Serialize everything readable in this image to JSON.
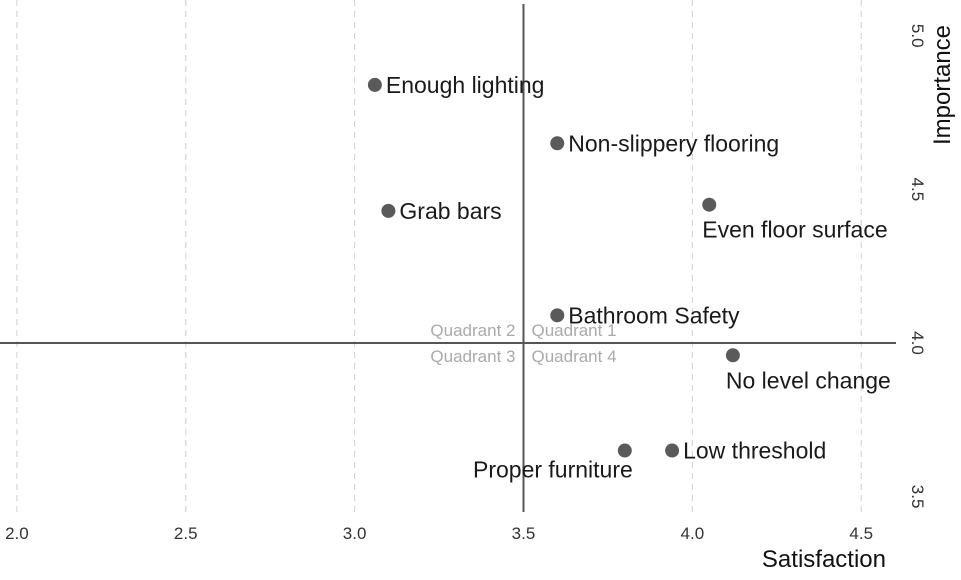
{
  "chart_data": {
    "type": "scatter",
    "title": "",
    "xlabel": "Satisfaction",
    "ylabel": "Importance",
    "xlim": [
      1.95,
      4.6
    ],
    "ylim": [
      3.45,
      5.1
    ],
    "x_ticks": [
      2.0,
      2.5,
      3.0,
      3.5,
      4.0,
      4.5
    ],
    "x_tick_labels": [
      "2.0",
      "2.5",
      "3.0",
      "3.5",
      "4.0",
      "4.5"
    ],
    "y_ticks": [
      3.5,
      4.0,
      4.5,
      5.0
    ],
    "y_tick_labels": [
      "3.5",
      "4.0",
      "4.5",
      "5.0"
    ],
    "grid": "vertical dashed",
    "reference_lines": {
      "x": 3.5,
      "y": 4.0
    },
    "quadrant_labels": [
      {
        "name": "quadrant-2-label",
        "text": "Quadrant 2",
        "position": "upper-left"
      },
      {
        "name": "quadrant-1-label",
        "text": "Quadrant 1",
        "position": "upper-right"
      },
      {
        "name": "quadrant-3-label",
        "text": "Quadrant 3",
        "position": "lower-left"
      },
      {
        "name": "quadrant-4-label",
        "text": "Quadrant 4",
        "position": "lower-right"
      }
    ],
    "points": [
      {
        "label": "Enough lighting",
        "x": 3.06,
        "y": 4.84,
        "label_side": "right"
      },
      {
        "label": "Non-slippery flooring",
        "x": 3.6,
        "y": 4.65,
        "label_side": "right"
      },
      {
        "label": "Grab bars",
        "x": 3.1,
        "y": 4.43,
        "label_side": "right"
      },
      {
        "label": "Even floor surface",
        "x": 4.05,
        "y": 4.45,
        "label_side": "below"
      },
      {
        "label": "Bathroom Safety",
        "x": 3.6,
        "y": 4.09,
        "label_side": "right"
      },
      {
        "label": "No level change",
        "x": 4.12,
        "y": 3.96,
        "label_side": "below"
      },
      {
        "label": "Low threshold",
        "x": 3.94,
        "y": 3.65,
        "label_side": "right"
      },
      {
        "label": "Proper furniture",
        "x": 3.8,
        "y": 3.65,
        "label_side": "below-left"
      }
    ]
  },
  "colors": {
    "point": "#5a5a5a",
    "reference_line": "#555555",
    "grid": "#cfcfcf",
    "quadrant_text": "#aaaaaa"
  }
}
